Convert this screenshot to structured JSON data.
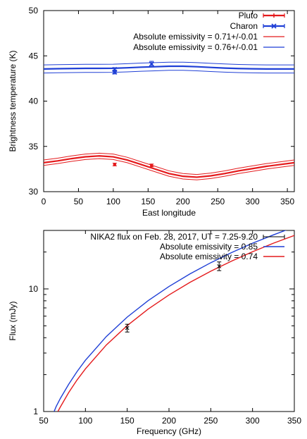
{
  "chart_data": [
    {
      "type": "line",
      "xlabel": "East longitude",
      "ylabel": "Brightness temperature (K)",
      "xlim": [
        0,
        360
      ],
      "ylim": [
        30,
        50
      ],
      "xticks": [
        "0",
        "50",
        "100",
        "150",
        "200",
        "250",
        "300",
        "350"
      ],
      "yticks": [
        "30",
        "35",
        "40",
        "45",
        "50"
      ],
      "grid": false,
      "legend_position": "top-right",
      "legend": [
        {
          "label": "Pluto",
          "color": "#e41a1c",
          "marker": "plus-errorbar"
        },
        {
          "label": "Charon",
          "color": "#1f3fd6",
          "marker": "cross-errorbar"
        },
        {
          "label": "Absolute emissivity = 0.71+/-0.01",
          "color": "#e41a1c",
          "marker": "line"
        },
        {
          "label": "Absolute emissivity = 0.76+/-0.01",
          "color": "#1f3fd6",
          "marker": "line"
        }
      ],
      "points": [
        {
          "series": "Pluto",
          "color": "#e41a1c",
          "data": [
            {
              "x": 102,
              "y": 33.0,
              "err": 0.15
            },
            {
              "x": 155,
              "y": 32.9,
              "err": 0.15
            }
          ]
        },
        {
          "series": "Charon",
          "color": "#1f3fd6",
          "data": [
            {
              "x": 102,
              "y": 43.5,
              "err": 0.2
            },
            {
              "x": 102,
              "y": 43.2,
              "err": 0.2
            },
            {
              "x": 155,
              "y": 44.1,
              "err": 0.3
            }
          ]
        }
      ],
      "series": [
        {
          "color": "#e41a1c",
          "x": [
            0,
            20,
            40,
            60,
            80,
            100,
            120,
            140,
            160,
            180,
            200,
            220,
            240,
            260,
            280,
            300,
            320,
            340,
            360
          ],
          "mid": [
            33.2,
            33.4,
            33.65,
            33.85,
            33.95,
            33.85,
            33.5,
            33.0,
            32.5,
            32.0,
            31.7,
            31.6,
            31.75,
            32.0,
            32.3,
            32.55,
            32.8,
            33.0,
            33.2
          ],
          "upper": [
            33.5,
            33.7,
            33.95,
            34.15,
            34.25,
            34.15,
            33.8,
            33.3,
            32.8,
            32.3,
            32.0,
            31.9,
            32.05,
            32.3,
            32.6,
            32.85,
            33.1,
            33.3,
            33.5
          ],
          "lower": [
            32.9,
            33.1,
            33.35,
            33.55,
            33.65,
            33.55,
            33.2,
            32.7,
            32.2,
            31.7,
            31.4,
            31.3,
            31.45,
            31.7,
            32.0,
            32.25,
            32.5,
            32.7,
            32.9
          ]
        },
        {
          "color": "#1f3fd6",
          "x": [
            0,
            20,
            40,
            60,
            80,
            100,
            120,
            140,
            160,
            180,
            200,
            220,
            240,
            260,
            280,
            300,
            320,
            340,
            360
          ],
          "mid": [
            43.55,
            43.58,
            43.6,
            43.62,
            43.62,
            43.63,
            43.68,
            43.75,
            43.8,
            43.85,
            43.85,
            43.8,
            43.72,
            43.65,
            43.6,
            43.57,
            43.55,
            43.55,
            43.55
          ],
          "upper": [
            44.0,
            44.03,
            44.05,
            44.07,
            44.07,
            44.08,
            44.13,
            44.2,
            44.25,
            44.3,
            44.3,
            44.25,
            44.17,
            44.1,
            44.05,
            44.02,
            44.0,
            44.0,
            44.0
          ],
          "lower": [
            43.1,
            43.13,
            43.15,
            43.17,
            43.17,
            43.18,
            43.23,
            43.3,
            43.35,
            43.4,
            43.4,
            43.35,
            43.27,
            43.2,
            43.15,
            43.12,
            43.1,
            43.1,
            43.1
          ]
        }
      ]
    },
    {
      "type": "line",
      "xlabel": "Frequency (GHz)",
      "ylabel": "Flux (mJy)",
      "xlim": [
        50,
        350
      ],
      "ylim": [
        1,
        30
      ],
      "yscale": "log",
      "xticks": [
        "50",
        "100",
        "150",
        "200",
        "250",
        "300",
        "350"
      ],
      "yticks": [
        "1",
        "10"
      ],
      "grid": false,
      "legend_position": "top-right",
      "legend": [
        {
          "label": "NIKA2 flux on Feb. 28, 2017, UT = 7.25-9.20",
          "color": "#000000",
          "marker": "errorbar"
        },
        {
          "label": "Absolute emissivity = 0.85",
          "color": "#1f3fd6",
          "marker": "line"
        },
        {
          "label": "Absolute emissivity = 0.74",
          "color": "#e41a1c",
          "marker": "line"
        }
      ],
      "points": [
        {
          "series": "NIKA2 flux on Feb. 28, 2017, UT = 7.25-9.20",
          "color": "#000000",
          "data": [
            {
              "x": 150,
              "y": 4.8,
              "err_lo": 0.35,
              "err_hi": 0.35
            },
            {
              "x": 260,
              "y": 15.3,
              "err_lo": 1.2,
              "err_hi": 1.3
            }
          ]
        }
      ],
      "series": [
        {
          "name": "Absolute emissivity = 0.85",
          "color": "#1f3fd6",
          "x": [
            62.5,
            65,
            70,
            80,
            90,
            100,
            125,
            150,
            175,
            200,
            225,
            250,
            275,
            300,
            325,
            350
          ],
          "y": [
            1.0,
            1.1,
            1.28,
            1.67,
            2.12,
            2.62,
            4.09,
            5.89,
            8.02,
            10.47,
            13.25,
            16.36,
            19.8,
            23.6,
            27.6,
            32.0
          ]
        },
        {
          "name": "Absolute emissivity = 0.74",
          "color": "#e41a1c",
          "x": [
            67,
            70,
            80,
            90,
            100,
            125,
            150,
            175,
            200,
            225,
            250,
            275,
            300,
            325,
            350
          ],
          "y": [
            1.0,
            1.09,
            1.43,
            1.81,
            2.23,
            3.49,
            5.02,
            6.84,
            8.93,
            11.3,
            13.95,
            16.88,
            20.1,
            23.6,
            27.3
          ]
        }
      ]
    }
  ]
}
